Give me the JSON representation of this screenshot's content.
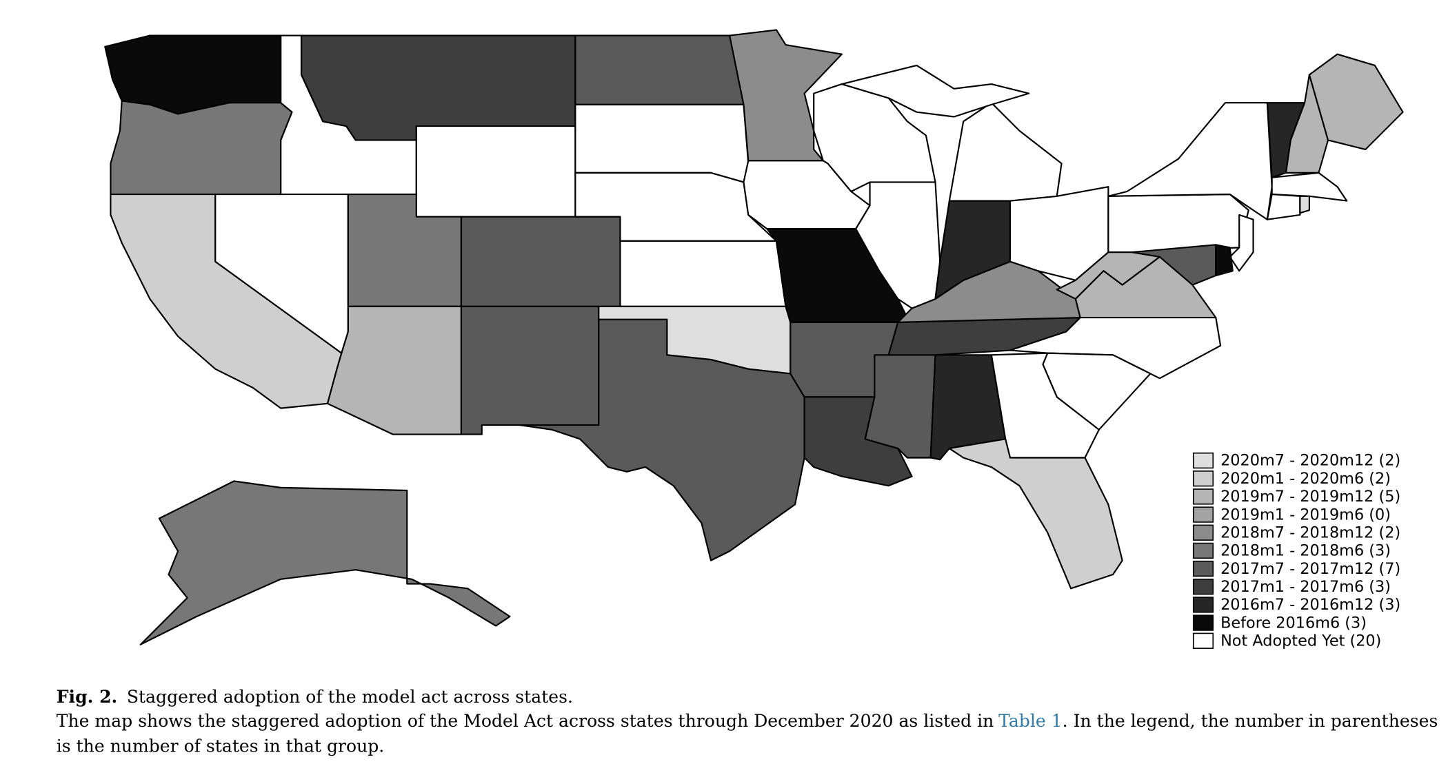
{
  "figure": {
    "legend": [
      {
        "label": "2020m7 - 2020m12 (2)",
        "color": "#dedede"
      },
      {
        "label": "2020m1 - 2020m6 (2)",
        "color": "#cfcfcf"
      },
      {
        "label": "2019m7 - 2019m12 (5)",
        "color": "#b5b5b5"
      },
      {
        "label": "2019m1 - 2019m6 (0)",
        "color": "#a3a3a3"
      },
      {
        "label": "2018m7 - 2018m12 (2)",
        "color": "#8c8c8c"
      },
      {
        "label": "2018m1 - 2018m6 (3)",
        "color": "#777777"
      },
      {
        "label": "2017m7 - 2017m12 (7)",
        "color": "#5a5a5a"
      },
      {
        "label": "2017m1 - 2017m6 (3)",
        "color": "#3e3e3e"
      },
      {
        "label": "2016m7 - 2016m12 (3)",
        "color": "#262626"
      },
      {
        "label": "Before 2016m6 (3)",
        "color": "#0a0a0a"
      },
      {
        "label": "Not Adopted Yet (20)",
        "color": "#ffffff"
      }
    ],
    "caption": {
      "label": "Fig. 2.",
      "title": "Staggered adoption of the model act across states.",
      "text_before_link": "The map shows the staggered adoption of the Model Act across states through December 2020 as listed in",
      "link": "Table 1",
      "text_after_link": ". In the legend, the number in parentheses",
      "text_line2": "is the number of states in that group."
    }
  }
}
